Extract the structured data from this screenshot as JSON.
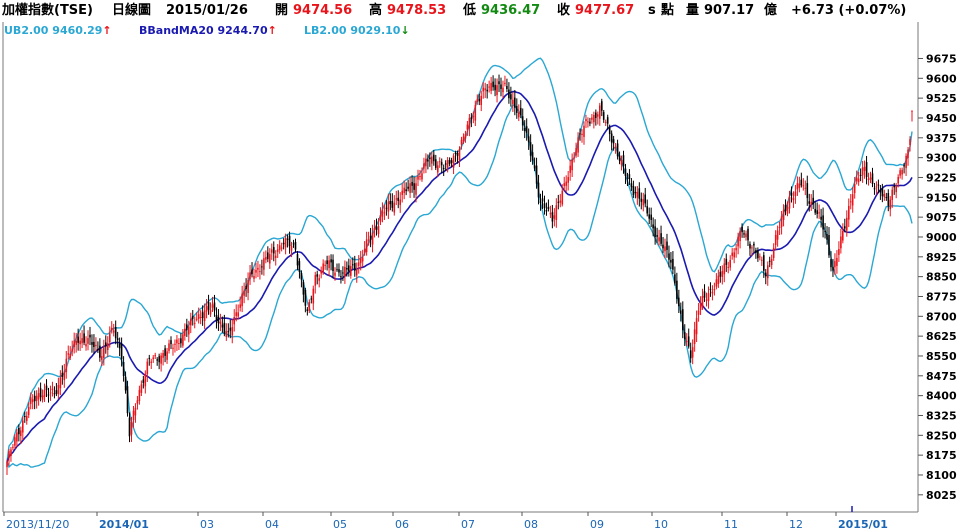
{
  "header": {
    "index_name": "加權指數(TSE)",
    "period": "日線圖",
    "date": "2015/01/26",
    "open_label": "開",
    "open_value": "9474.56",
    "high_label": "高",
    "high_value": "9478.53",
    "low_label": "低",
    "low_value": "9436.47",
    "close_label": "收",
    "close_value": "9477.67",
    "unit_s": "s",
    "points_label": "點",
    "volume_label": "量",
    "volume_value": "907.17",
    "volume_unit": "億",
    "change": "+6.73 (+0.07%)"
  },
  "legend": {
    "ub_label": "UB2.00 9460.29",
    "ub_arrow": "↑",
    "ma_label": "BBandMA20 9244.70",
    "ma_arrow": "↑",
    "lb_label": "LB2.00 9029.10",
    "lb_arrow": "↓"
  },
  "colors": {
    "up": "#e8141b",
    "down": "#000000",
    "band": "#2aa7d3",
    "ma": "#1a1ab0",
    "axis_tick": "#1a66b5"
  },
  "chart_data": {
    "type": "candlestick",
    "title": "",
    "ylim": [
      7960,
      9760
    ],
    "y_ticks": [
      8025,
      8100,
      8175,
      8250,
      8325,
      8400,
      8475,
      8550,
      8625,
      8700,
      8775,
      8850,
      8925,
      9000,
      9075,
      9150,
      9225,
      9300,
      9375,
      9450,
      9525,
      9600,
      9675
    ],
    "x_ticks": [
      {
        "label": "2013/11/20",
        "bold": false
      },
      {
        "label": "2014/01",
        "bold": true
      },
      {
        "label": "03",
        "bold": false
      },
      {
        "label": "04",
        "bold": false
      },
      {
        "label": "05",
        "bold": false
      },
      {
        "label": "06",
        "bold": false
      },
      {
        "label": "07",
        "bold": false
      },
      {
        "label": "08",
        "bold": false
      },
      {
        "label": "09",
        "bold": false
      },
      {
        "label": "10",
        "bold": false
      },
      {
        "label": "11",
        "bold": false
      },
      {
        "label": "12",
        "bold": false
      },
      {
        "label": "2015/01",
        "bold": true
      }
    ],
    "close_waypoints": [
      [
        0,
        8150
      ],
      [
        6,
        8270
      ],
      [
        12,
        8370
      ],
      [
        18,
        8420
      ],
      [
        24,
        8400
      ],
      [
        30,
        8530
      ],
      [
        36,
        8620
      ],
      [
        42,
        8600
      ],
      [
        48,
        8560
      ],
      [
        54,
        8650
      ],
      [
        58,
        8560
      ],
      [
        62,
        8250
      ],
      [
        66,
        8400
      ],
      [
        72,
        8530
      ],
      [
        80,
        8560
      ],
      [
        88,
        8620
      ],
      [
        96,
        8700
      ],
      [
        104,
        8730
      ],
      [
        112,
        8620
      ],
      [
        118,
        8760
      ],
      [
        124,
        8860
      ],
      [
        132,
        8920
      ],
      [
        140,
        8980
      ],
      [
        146,
        8960
      ],
      [
        152,
        8700
      ],
      [
        156,
        8850
      ],
      [
        162,
        8900
      ],
      [
        170,
        8860
      ],
      [
        178,
        8900
      ],
      [
        184,
        9000
      ],
      [
        190,
        9090
      ],
      [
        198,
        9150
      ],
      [
        206,
        9200
      ],
      [
        214,
        9300
      ],
      [
        222,
        9260
      ],
      [
        230,
        9350
      ],
      [
        238,
        9520
      ],
      [
        246,
        9580
      ],
      [
        252,
        9560
      ],
      [
        258,
        9490
      ],
      [
        262,
        9400
      ],
      [
        266,
        9300
      ],
      [
        270,
        9120
      ],
      [
        276,
        9080
      ],
      [
        282,
        9180
      ],
      [
        288,
        9350
      ],
      [
        294,
        9440
      ],
      [
        300,
        9480
      ],
      [
        306,
        9380
      ],
      [
        312,
        9250
      ],
      [
        318,
        9170
      ],
      [
        324,
        9100
      ],
      [
        330,
        8980
      ],
      [
        336,
        8920
      ],
      [
        342,
        8640
      ],
      [
        346,
        8560
      ],
      [
        350,
        8730
      ],
      [
        356,
        8800
      ],
      [
        360,
        8840
      ],
      [
        366,
        8920
      ],
      [
        372,
        9020
      ],
      [
        378,
        8960
      ],
      [
        384,
        8860
      ],
      [
        390,
        9020
      ],
      [
        396,
        9150
      ],
      [
        402,
        9200
      ],
      [
        408,
        9120
      ],
      [
        414,
        9020
      ],
      [
        418,
        8870
      ],
      [
        422,
        8980
      ],
      [
        428,
        9180
      ],
      [
        434,
        9260
      ],
      [
        440,
        9180
      ],
      [
        446,
        9140
      ],
      [
        452,
        9230
      ],
      [
        456,
        9330
      ],
      [
        458,
        9450
      ]
    ],
    "series": [
      {
        "name": "UB2.00",
        "last_value": 9460.29
      },
      {
        "name": "BBandMA20",
        "last_value": 9244.7
      },
      {
        "name": "LB2.00",
        "last_value": 9029.1
      }
    ]
  }
}
